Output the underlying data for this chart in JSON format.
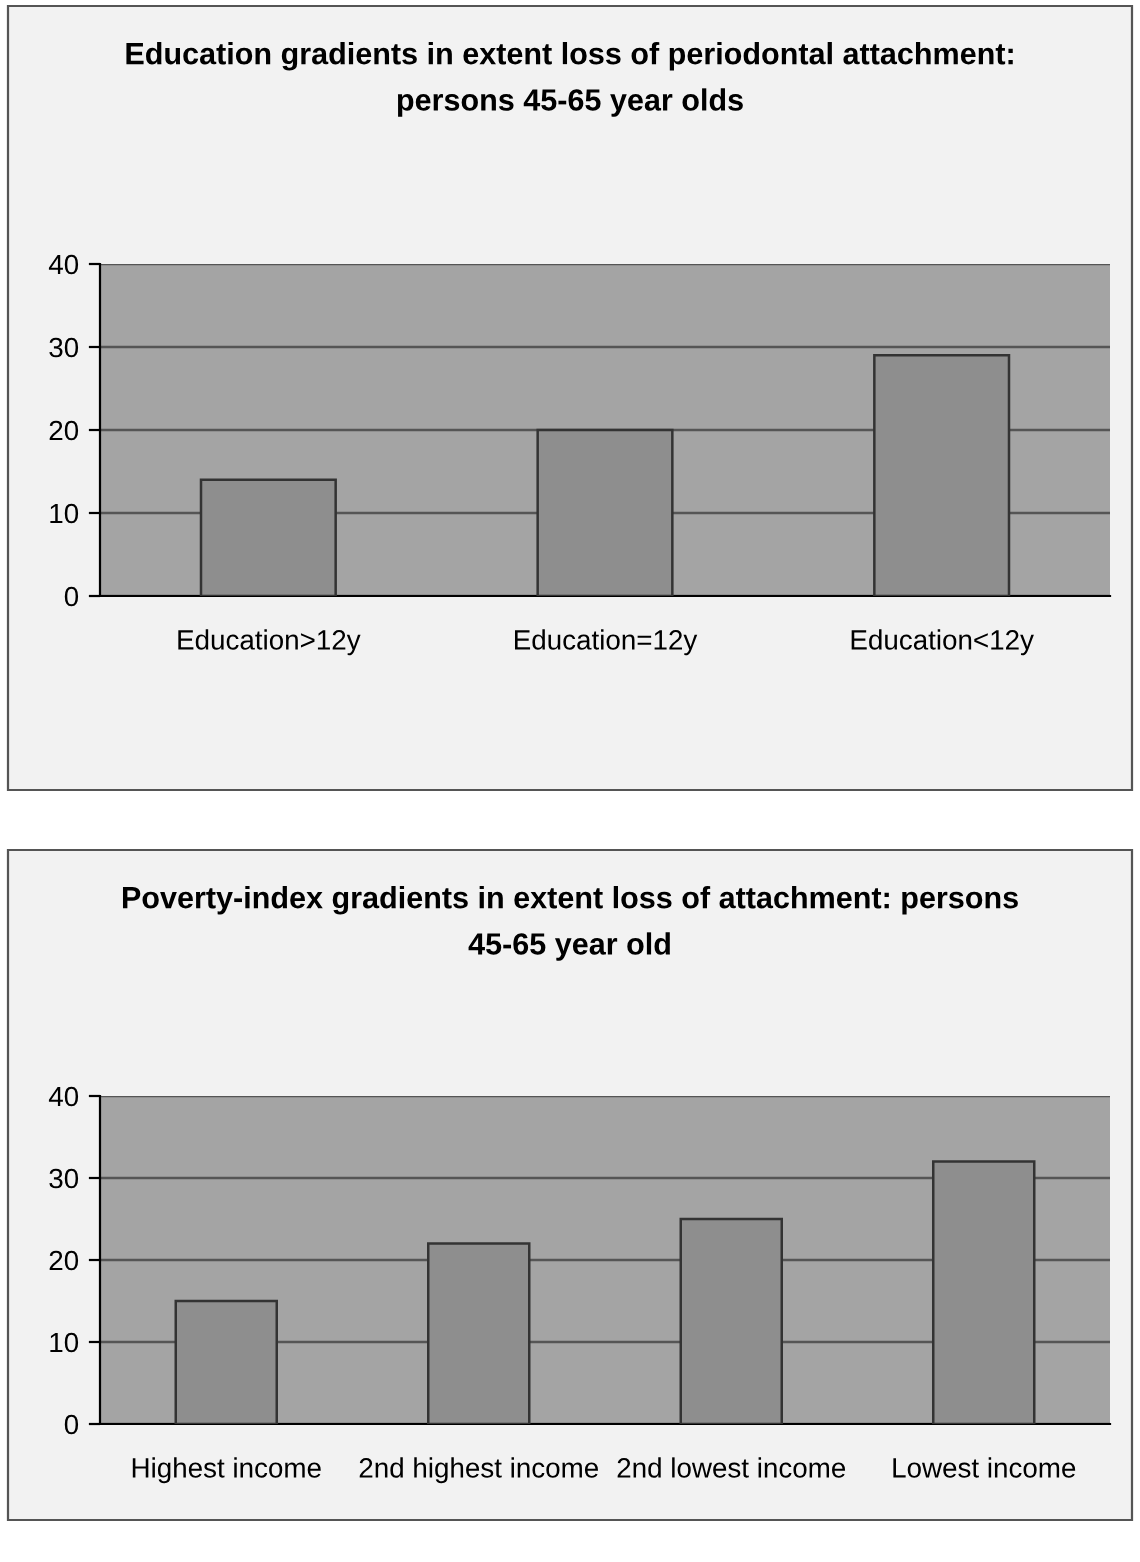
{
  "chart_data": [
    {
      "type": "bar",
      "title": "Education gradients in extent loss of periodontal attachment:\npersons 45-65 year olds",
      "categories": [
        "Education>12y",
        "Education=12y",
        "Education<12y"
      ],
      "values": [
        14,
        20,
        29
      ],
      "color": "#8e8e8e",
      "ylim": [
        0,
        40
      ],
      "yticks": [
        0,
        10,
        20,
        30,
        40
      ],
      "grid": "y",
      "legend": false
    },
    {
      "type": "bar",
      "title": "Poverty-index gradients in extent loss of attachment: persons\n45-65 year old",
      "categories": [
        "Highest income",
        "2nd highest income",
        "2nd lowest income",
        "Lowest income"
      ],
      "values": [
        15,
        22,
        25,
        32
      ],
      "color": "#8e8e8e",
      "ylim": [
        0,
        40
      ],
      "yticks": [
        0,
        10,
        20,
        30,
        40
      ],
      "grid": "y",
      "legend": false
    }
  ]
}
